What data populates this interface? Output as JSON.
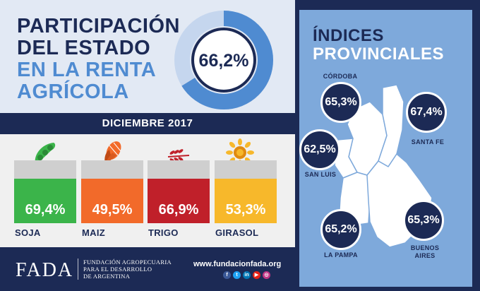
{
  "header": {
    "title_line1": "PARTICIPACIÓN",
    "title_line2": "DEL ESTADO",
    "title_line3": "EN LA RENTA",
    "title_line4": "AGRÍCOLA",
    "main_value": "66,2%",
    "date": "DICIEMBRE 2017"
  },
  "colors": {
    "navy": "#1c2a55",
    "blue": "#4f8bd1",
    "soja": "#3bb44a",
    "maiz": "#f26a2a",
    "trigo": "#c0202a",
    "girasol": "#f7b82b"
  },
  "chart_data": [
    {
      "type": "bar",
      "categories": [
        "SOJA",
        "MAIZ",
        "TRIGO",
        "GIRASOL"
      ],
      "values": [
        69.4,
        49.5,
        66.9,
        53.3
      ],
      "value_labels": [
        "69,4%",
        "49,5%",
        "66,9%",
        "53,3%"
      ],
      "icons": [
        "soybean-pod-icon",
        "corn-cob-icon",
        "wheat-stalk-icon",
        "sunflower-icon"
      ]
    },
    {
      "type": "pie",
      "values": [
        66.2
      ],
      "value_label": "66,2%"
    }
  ],
  "provinces": {
    "title_line1": "ÍNDICES",
    "title_line2": "PROVINCIALES",
    "items": [
      {
        "name": "CÓRDOBA",
        "value": "65,3%"
      },
      {
        "name": "SANTA FE",
        "value": "67,4%"
      },
      {
        "name": "SAN LUIS",
        "value": "62,5%"
      },
      {
        "name": "LA PAMPA",
        "value": "65,2%"
      },
      {
        "name": "BUENOS",
        "name2": "AIRES",
        "value": "65,3%"
      }
    ]
  },
  "footer": {
    "logo": "FADA",
    "org_line1": "FUNDACIÓN AGROPECUARIA",
    "org_line2": "PARA EL DESARROLLO",
    "org_line3": "DE ARGENTINA",
    "website": "www.fundacionfada.org",
    "social_icons": [
      "facebook-icon",
      "twitter-icon",
      "linkedin-icon",
      "youtube-icon",
      "instagram-icon"
    ]
  }
}
